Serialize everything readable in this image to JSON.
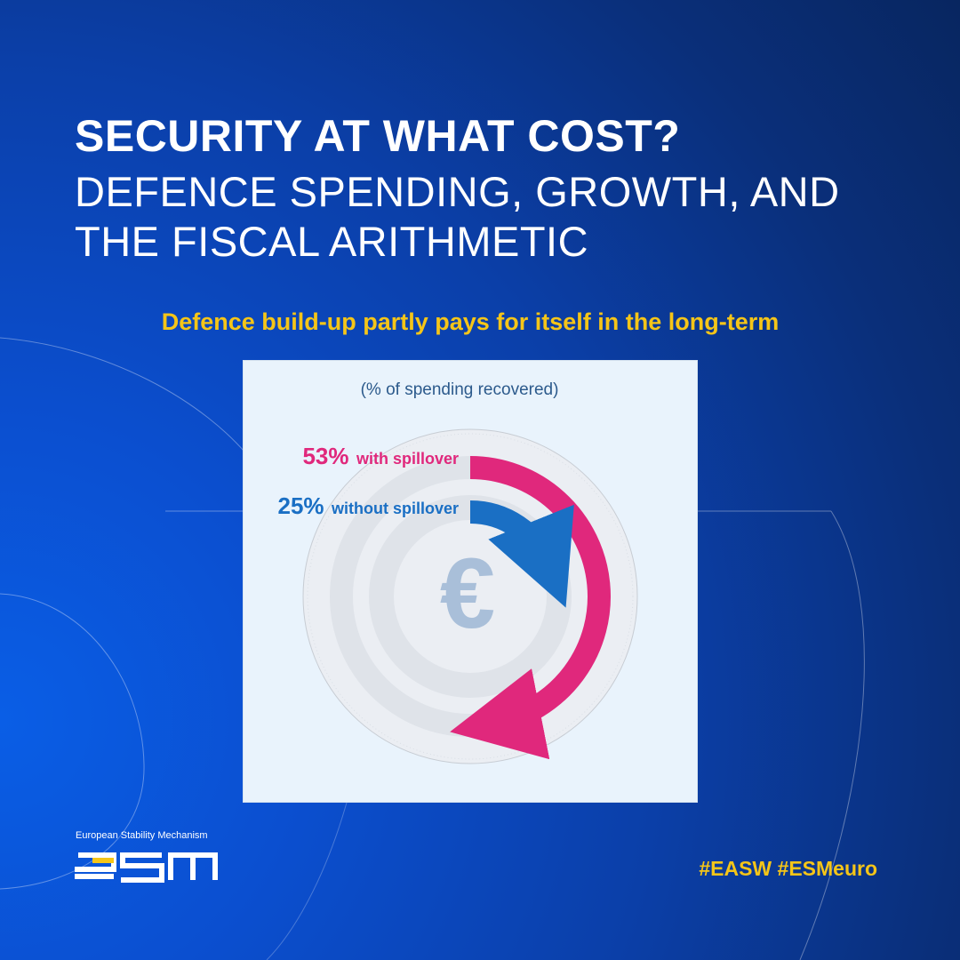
{
  "header": {
    "title_bold": "SECURITY AT WHAT COST?",
    "title_rest": "DEFENCE SPENDING, GROWTH, AND THE FISCAL ARITHMETIC"
  },
  "subtitle": "Defence build-up partly pays for itself in the long-term",
  "chart_data": {
    "type": "radial-bar",
    "unit_label": "(% of spending recovered)",
    "center_symbol": "€",
    "series": [
      {
        "value_label": "53%",
        "label": "with spillover",
        "value": 53,
        "color": "#e0287c"
      },
      {
        "value_label": "25%",
        "label": "without spillover",
        "value": 25,
        "color": "#1a6fc4"
      }
    ]
  },
  "footer": {
    "org_name": "European Stability Mechanism",
    "logo_text": "esm",
    "hashtags": "#EASW #ESMeuro"
  },
  "colors": {
    "accent_yellow": "#f5c518",
    "background_blue": "#0b4fd0",
    "spillover_pink": "#e0287c",
    "no_spillover_blue": "#1a6fc4"
  }
}
